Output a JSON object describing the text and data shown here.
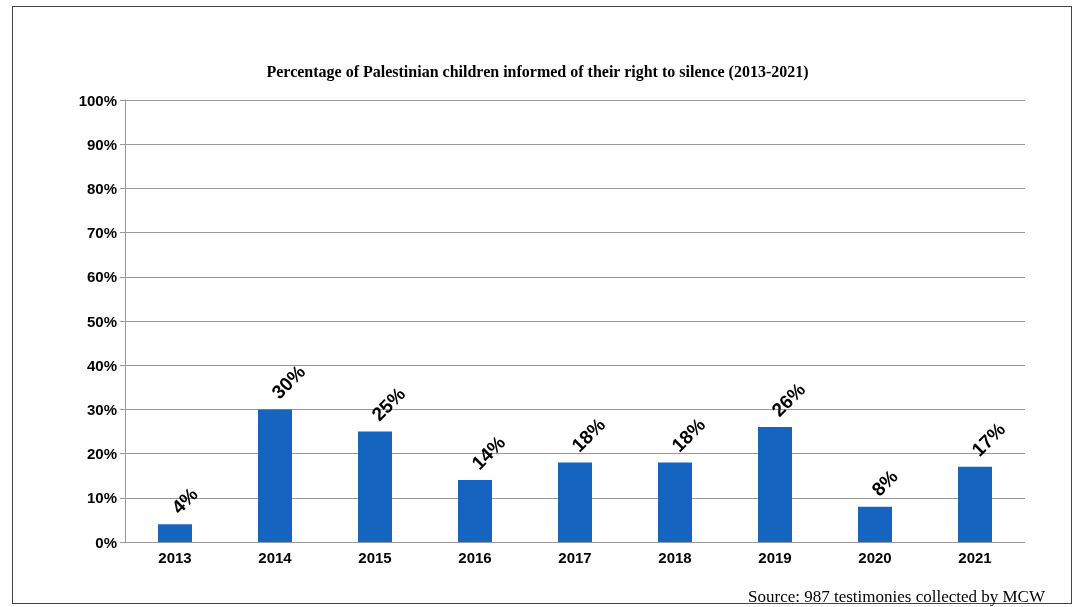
{
  "chart_data": {
    "type": "bar",
    "title": "Percentage of Palestinian children informed of their right to silence (2013-2021)",
    "categories": [
      "2013",
      "2014",
      "2015",
      "2016",
      "2017",
      "2018",
      "2019",
      "2020",
      "2021"
    ],
    "values": [
      4,
      30,
      25,
      14,
      18,
      18,
      26,
      8,
      17
    ],
    "color": "#1565c0",
    "ylim": [
      0,
      100
    ],
    "yticks": [
      {
        "value": 0,
        "label": "0%"
      },
      {
        "value": 10,
        "label": "10%"
      },
      {
        "value": 20,
        "label": "20%"
      },
      {
        "value": 30,
        "label": "30%"
      },
      {
        "value": 40,
        "label": "40%"
      },
      {
        "value": 50,
        "label": "50%"
      },
      {
        "value": 60,
        "label": "60%"
      },
      {
        "value": 70,
        "label": "70%"
      },
      {
        "value": 80,
        "label": "80%"
      },
      {
        "value": 90,
        "label": "90%"
      },
      {
        "value": 100,
        "label": "100%"
      }
    ],
    "value_labels": [
      "4%",
      "30%",
      "25%",
      "14%",
      "18%",
      "18%",
      "26%",
      "8%",
      "17%"
    ],
    "grid": "y",
    "annotations": [
      "Source: 987 testimonies collected by MCW"
    ]
  }
}
